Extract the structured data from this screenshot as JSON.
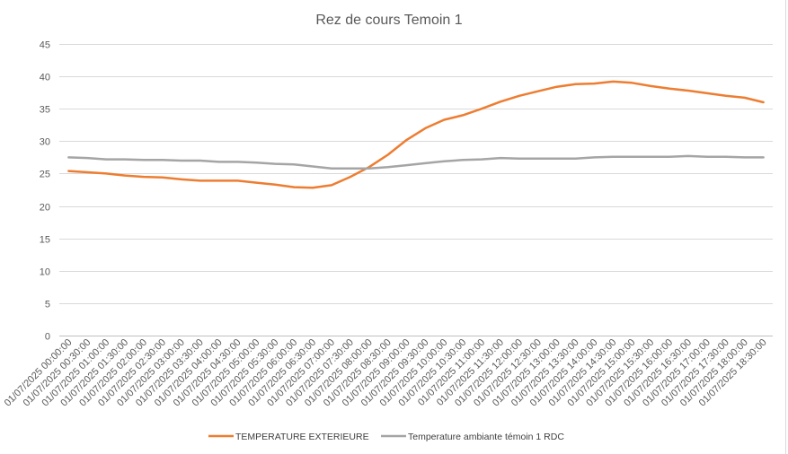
{
  "chart_data": {
    "type": "line",
    "title": "Rez de cours Temoin 1",
    "xlabel": "",
    "ylabel": "",
    "ylim": [
      0,
      45
    ],
    "yticks": [
      0,
      5,
      10,
      15,
      20,
      25,
      30,
      35,
      40,
      45
    ],
    "grid": true,
    "legend_position": "bottom",
    "categories": [
      "01/07/2025 00:00:00",
      "01/07/2025 00:30:00",
      "01/07/2025 01:00:00",
      "01/07/2025 01:30:00",
      "01/07/2025 02:00:00",
      "01/07/2025 02:30:00",
      "01/07/2025 03:00:00",
      "01/07/2025 03:30:00",
      "01/07/2025 04:00:00",
      "01/07/2025 04:30:00",
      "01/07/2025 05:00:00",
      "01/07/2025 05:30:00",
      "01/07/2025 06:00:00",
      "01/07/2025 06:30:00",
      "01/07/2025 07:00:00",
      "01/07/2025 07:30:00",
      "01/07/2025 08:00:00",
      "01/07/2025 08:30:00",
      "01/07/2025 09:00:00",
      "01/07/2025 09:30:00",
      "01/07/2025 10:00:00",
      "01/07/2025 10:30:00",
      "01/07/2025 11:00:00",
      "01/07/2025 11:30:00",
      "01/07/2025 12:00:00",
      "01/07/2025 12:30:00",
      "01/07/2025 13:00:00",
      "01/07/2025 13:30:00",
      "01/07/2025 14:00:00",
      "01/07/2025 14:30:00",
      "01/07/2025 15:00:00",
      "01/07/2025 15:30:00",
      "01/07/2025 16:00:00",
      "01/07/2025 16:30:00",
      "01/07/2025 17:00:00",
      "01/07/2025 17:30:00",
      "01/07/2025 18:00:00",
      "01/07/2025 18:30:00"
    ],
    "series": [
      {
        "name": "TEMPERATURE EXTERIEURE",
        "color": "#ED7D31",
        "values": [
          25.4,
          25.2,
          25.0,
          24.7,
          24.5,
          24.4,
          24.1,
          23.9,
          23.9,
          23.9,
          23.6,
          23.3,
          22.9,
          22.8,
          23.2,
          24.5,
          26.0,
          27.9,
          30.2,
          32.0,
          33.3,
          34.0,
          35.0,
          36.1,
          37.0,
          37.7,
          38.4,
          38.8,
          38.9,
          39.2,
          39.0,
          38.5,
          38.1,
          37.8,
          37.4,
          37.0,
          36.7,
          36.0
        ]
      },
      {
        "name": "Temperature ambiante témoin 1 RDC",
        "color": "#A5A5A5",
        "values": [
          27.5,
          27.4,
          27.2,
          27.2,
          27.1,
          27.1,
          27.0,
          27.0,
          26.8,
          26.8,
          26.7,
          26.5,
          26.4,
          26.1,
          25.8,
          25.8,
          25.8,
          26.0,
          26.3,
          26.6,
          26.9,
          27.1,
          27.2,
          27.4,
          27.3,
          27.3,
          27.3,
          27.3,
          27.5,
          27.6,
          27.6,
          27.6,
          27.6,
          27.7,
          27.6,
          27.6,
          27.5,
          27.5
        ]
      }
    ]
  }
}
